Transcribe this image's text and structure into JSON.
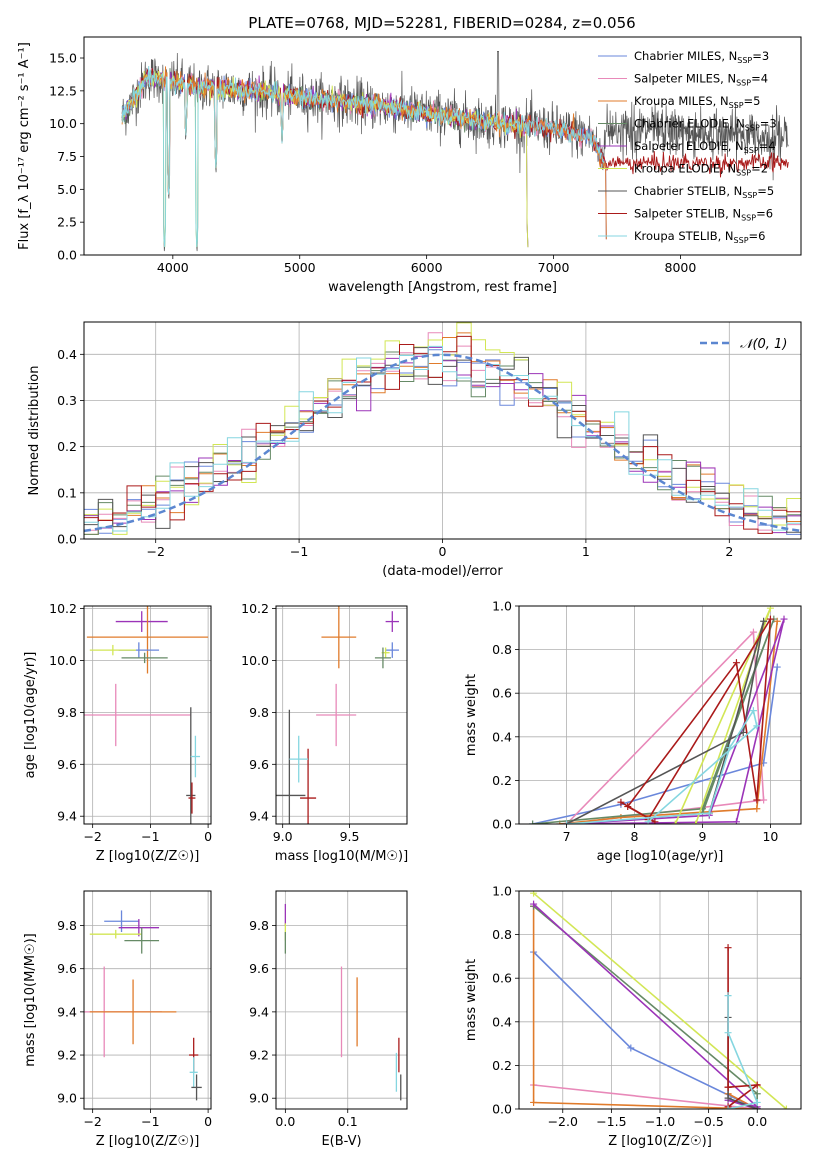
{
  "page": {
    "title": "PLATE=0768, MJD=52281, FIBERID=0284, z=0.056"
  },
  "colors": {
    "Chabrier MILES": "#6a87db",
    "Salpeter MILES": "#e889b9",
    "Kroupa MILES": "#e07b2b",
    "Chabrier ELODIE": "#668a66",
    "Salpeter ELODIE": "#9b34b8",
    "Kroupa ELODIE": "#d2e655",
    "Chabrier STELIB": "#555555",
    "Salpeter STELIB": "#aa1a1a",
    "Kroupa STELIB": "#85d6e0",
    "grid": "#b0b0b0",
    "gauss": "#5b86d0"
  },
  "legend": {
    "models": [
      {
        "name": "Chabrier MILES",
        "nssp": "3"
      },
      {
        "name": "Salpeter MILES",
        "nssp": "4"
      },
      {
        "name": "Kroupa MILES",
        "nssp": "5"
      },
      {
        "name": "Chabrier ELODIE",
        "nssp": "3"
      },
      {
        "name": "Salpeter ELODIE",
        "nssp": "4"
      },
      {
        "name": "Kroupa ELODIE",
        "nssp": "2"
      },
      {
        "name": "Chabrier STELIB",
        "nssp": "5"
      },
      {
        "name": "Salpeter STELIB",
        "nssp": "6"
      },
      {
        "name": "Kroupa STELIB",
        "nssp": "6"
      }
    ],
    "gauss_label": "𝒩(0, 1)"
  },
  "chart_data": [
    {
      "id": "spectrum",
      "type": "line",
      "title": "PLATE=0768, MJD=52281, FIBERID=0284, z=0.056",
      "xlabel": "wavelength [Angstrom, rest frame]",
      "ylabel": "Flux [f_λ 10⁻¹⁷ erg cm⁻² s⁻¹ A⁻¹]",
      "xlim": [
        3300,
        8950
      ],
      "ylim": [
        0,
        16.6
      ],
      "xticks": [
        4000,
        5000,
        6000,
        7000,
        8000
      ],
      "yticks": [
        0.0,
        2.5,
        5.0,
        7.5,
        10.0,
        12.5,
        15.0
      ],
      "xtick_labels": [
        "4000",
        "5000",
        "6000",
        "7000",
        "8000"
      ],
      "ytick_labels": [
        "0.0",
        "2.5",
        "5.0",
        "7.5",
        "10.0",
        "12.5",
        "15.0"
      ],
      "grid": false,
      "legend_position": "top-right",
      "continuum": {
        "x": [
          3600,
          3700,
          3800,
          3900,
          4000,
          4200,
          4500,
          4800,
          5000,
          5500,
          6000,
          6500,
          7000,
          7300,
          7400
        ],
        "y": [
          10.5,
          12.0,
          13.6,
          13.4,
          13.2,
          12.8,
          12.6,
          12.3,
          12.0,
          11.5,
          10.8,
          10.1,
          9.6,
          9.0,
          7.0
        ]
      },
      "absorption_features": [
        {
          "x": 3934,
          "depth_to": 0.0
        },
        {
          "x": 3968,
          "depth_to": 4.0
        },
        {
          "x": 4102,
          "depth_to": 8.5
        },
        {
          "x": 4190,
          "depth_to": 0.0
        },
        {
          "x": 4340,
          "depth_to": 6.0
        },
        {
          "x": 4861,
          "depth_to": 8.2
        },
        {
          "x": 6800,
          "depth_to": 0.0
        },
        {
          "x": 7420,
          "depth_to": 0.0
        }
      ],
      "emission_features": [
        {
          "x": 6563,
          "peak_to": 15.5
        }
      ]
    },
    {
      "id": "residuals",
      "type": "step",
      "xlabel": "(data-model)/error",
      "ylabel": "Normed distribution",
      "xlim": [
        -2.5,
        2.5
      ],
      "ylim": [
        0,
        0.47
      ],
      "xticks": [
        -2,
        -1,
        0,
        1,
        2
      ],
      "xtick_labels": [
        "−2",
        "−1",
        "0",
        "1",
        "2"
      ],
      "yticks": [
        0.0,
        0.1,
        0.2,
        0.3,
        0.4
      ],
      "ytick_labels": [
        "0.0",
        "0.1",
        "0.2",
        "0.3",
        "0.4"
      ],
      "grid": true,
      "legend_position": "top-right",
      "bins": 50,
      "gauss": {
        "mean": 0,
        "sigma": 1
      }
    },
    {
      "id": "age_vs_Z",
      "type": "errorbar",
      "xlabel": "Z [log10(Z/Z☉)]",
      "ylabel": "age  [log10(age/yr)]",
      "xlim": [
        -2.15,
        0.05
      ],
      "ylim": [
        9.37,
        10.21
      ],
      "xticks": [
        -2,
        -1,
        0
      ],
      "xtick_labels": [
        "−2",
        "−1",
        "0"
      ],
      "yticks": [
        9.4,
        9.6,
        9.8,
        10.0,
        10.2
      ],
      "ytick_labels": [
        "9.4",
        "9.6",
        "9.8",
        "10.0",
        "10.2"
      ],
      "points": [
        {
          "model": "Salpeter ELODIE",
          "x": -1.15,
          "xerr": 0.45,
          "y": 10.15,
          "yerr": 0.04
        },
        {
          "model": "Kroupa MILES",
          "x": -1.05,
          "xerr": 1.05,
          "y": 10.09,
          "yerr": 0.14
        },
        {
          "model": "Chabrier MILES",
          "x": -1.2,
          "xerr": 0.35,
          "y": 10.04,
          "yerr": 0.03
        },
        {
          "model": "Kroupa ELODIE",
          "x": -1.65,
          "xerr": 0.4,
          "y": 10.04,
          "yerr": 0.02
        },
        {
          "model": "Chabrier ELODIE",
          "x": -1.1,
          "xerr": 0.4,
          "y": 10.01,
          "yerr": 0.02
        },
        {
          "model": "Salpeter MILES",
          "x": -1.6,
          "xerr": 1.3,
          "y": 9.79,
          "yerr": 0.12
        },
        {
          "model": "Chabrier STELIB",
          "x": -0.3,
          "xerr": 0.08,
          "y": 9.48,
          "yerr": 0.34
        },
        {
          "model": "Salpeter STELIB",
          "x": -0.28,
          "xerr": 0.06,
          "y": 9.47,
          "yerr": 0.06
        },
        {
          "model": "Kroupa STELIB",
          "x": -0.22,
          "xerr": 0.08,
          "y": 9.63,
          "yerr": 0.08
        }
      ]
    },
    {
      "id": "age_vs_mass",
      "type": "errorbar",
      "xlabel": "mass [log10(M/M☉)]",
      "ylabel": "",
      "xlim": [
        8.95,
        9.93
      ],
      "ylim": [
        9.37,
        10.21
      ],
      "xticks": [
        9.0,
        9.5
      ],
      "xtick_labels": [
        "9.0",
        "9.5"
      ],
      "yticks": [
        9.4,
        9.6,
        9.8,
        10.0,
        10.2
      ],
      "ytick_labels": [
        "9.4",
        "9.6",
        "9.8",
        "10.0",
        "10.2"
      ],
      "points": [
        {
          "model": "Salpeter ELODIE",
          "x": 9.82,
          "xerr": 0.05,
          "y": 10.15,
          "yerr": 0.04
        },
        {
          "model": "Kroupa MILES",
          "x": 9.42,
          "xerr": 0.13,
          "y": 10.09,
          "yerr": 0.12
        },
        {
          "model": "Chabrier MILES",
          "x": 9.82,
          "xerr": 0.05,
          "y": 10.04,
          "yerr": 0.03
        },
        {
          "model": "Kroupa ELODIE",
          "x": 9.77,
          "xerr": 0.03,
          "y": 10.03,
          "yerr": 0.02
        },
        {
          "model": "Chabrier ELODIE",
          "x": 9.75,
          "xerr": 0.06,
          "y": 10.01,
          "yerr": 0.04
        },
        {
          "model": "Salpeter MILES",
          "x": 9.4,
          "xerr": 0.15,
          "y": 9.79,
          "yerr": 0.12
        },
        {
          "model": "Chabrier STELIB",
          "x": 9.05,
          "xerr": 0.12,
          "y": 9.48,
          "yerr": 0.33
        },
        {
          "model": "Salpeter STELIB",
          "x": 9.19,
          "xerr": 0.06,
          "y": 9.47,
          "yerr": 0.19
        },
        {
          "model": "Kroupa STELIB",
          "x": 9.12,
          "xerr": 0.07,
          "y": 9.62,
          "yerr": 0.09
        }
      ]
    },
    {
      "id": "weight_vs_age",
      "type": "line",
      "xlabel": "age  [log10(age/yr)]",
      "ylabel": "mass weight",
      "xlim": [
        6.3,
        10.45
      ],
      "ylim": [
        0,
        1
      ],
      "xticks": [
        7,
        8,
        9,
        10
      ],
      "xtick_labels": [
        "7",
        "8",
        "9",
        "10"
      ],
      "yticks": [
        0.0,
        0.2,
        0.4,
        0.6,
        0.8,
        1.0
      ],
      "ytick_labels": [
        "0.0",
        "0.2",
        "0.4",
        "0.6",
        "0.8",
        "1.0"
      ],
      "grid": true,
      "series": [
        {
          "model": "Chabrier MILES",
          "x": [
            6.5,
            7.8,
            9.9,
            10.1
          ],
          "y": [
            0.0,
            0.09,
            0.28,
            0.72
          ]
        },
        {
          "model": "Salpeter MILES",
          "x": [
            7.0,
            9.75,
            9.9,
            7.0
          ],
          "y": [
            0.0,
            0.88,
            0.11,
            0.0
          ]
        },
        {
          "model": "Kroupa MILES",
          "x": [
            6.9,
            7.8,
            9.8,
            10.1
          ],
          "y": [
            0.0,
            0.03,
            0.07,
            0.93
          ]
        },
        {
          "model": "Chabrier ELODIE",
          "x": [
            6.5,
            9.0,
            10.05,
            9.0
          ],
          "y": [
            0.0,
            0.07,
            0.94,
            0.05
          ]
        },
        {
          "model": "Salpeter ELODIE",
          "x": [
            7.0,
            9.1,
            10.2,
            9.5,
            7.0
          ],
          "y": [
            0.0,
            0.04,
            0.94,
            0.01,
            0.0
          ]
        },
        {
          "model": "Kroupa ELODIE",
          "x": [
            8.6,
            10.0,
            8.9
          ],
          "y": [
            0.0,
            0.99,
            0.0
          ]
        },
        {
          "model": "Chabrier STELIB",
          "x": [
            7.0,
            9.6,
            9.9,
            9.1
          ],
          "y": [
            0.0,
            0.42,
            0.93,
            0.05
          ]
        },
        {
          "model": "Salpeter STELIB",
          "x": [
            7.8,
            8.3,
            7.9,
            9.5,
            9.8,
            10.0,
            8.2
          ],
          "y": [
            0.1,
            0.01,
            0.08,
            0.74,
            0.11,
            0.94,
            0.02
          ]
        },
        {
          "model": "Kroupa STELIB",
          "x": [
            7.0,
            9.1,
            9.4,
            9.75,
            9.8,
            8.2
          ],
          "y": [
            0.0,
            0.05,
            0.35,
            0.52,
            0.45,
            0.01
          ]
        }
      ]
    },
    {
      "id": "mass_vs_Z",
      "type": "errorbar",
      "xlabel": "Z [log10(Z/Z☉)]",
      "ylabel": "mass [log10(M/M☉)]",
      "xlim": [
        -2.15,
        0.05
      ],
      "ylim": [
        8.95,
        9.96
      ],
      "xticks": [
        -2,
        -1,
        0
      ],
      "xtick_labels": [
        "−2",
        "−1",
        "0"
      ],
      "yticks": [
        9.0,
        9.2,
        9.4,
        9.6,
        9.8
      ],
      "ytick_labels": [
        "9.0",
        "9.2",
        "9.4",
        "9.6",
        "9.8"
      ],
      "points": [
        {
          "model": "Chabrier MILES",
          "x": -1.5,
          "xerr": 0.3,
          "y": 9.82,
          "yerr": 0.05
        },
        {
          "model": "Salpeter ELODIE",
          "x": -1.2,
          "xerr": 0.35,
          "y": 9.79,
          "yerr": 0.04
        },
        {
          "model": "Kroupa ELODIE",
          "x": -1.6,
          "xerr": 0.45,
          "y": 9.76,
          "yerr": 0.02
        },
        {
          "model": "Chabrier ELODIE",
          "x": -1.15,
          "xerr": 0.3,
          "y": 9.73,
          "yerr": 0.06
        },
        {
          "model": "Salpeter MILES",
          "x": -1.8,
          "xerr": 1.0,
          "y": 9.4,
          "yerr": 0.21
        },
        {
          "model": "Kroupa MILES",
          "x": -1.3,
          "xerr": 0.75,
          "y": 9.4,
          "yerr": 0.15
        },
        {
          "model": "Salpeter STELIB",
          "x": -0.25,
          "xerr": 0.08,
          "y": 9.2,
          "yerr": 0.08
        },
        {
          "model": "Kroupa STELIB",
          "x": -0.25,
          "xerr": 0.07,
          "y": 9.12,
          "yerr": 0.07
        },
        {
          "model": "Chabrier STELIB",
          "x": -0.2,
          "xerr": 0.09,
          "y": 9.05,
          "yerr": 0.06
        }
      ]
    },
    {
      "id": "mass_vs_ebv",
      "type": "errorbar",
      "xlabel": "E(B-V)",
      "ylabel": "",
      "xlim": [
        -0.015,
        0.195
      ],
      "ylim": [
        8.95,
        9.96
      ],
      "xticks": [
        0.0,
        0.1
      ],
      "xtick_labels": [
        "0.0",
        "0.1"
      ],
      "yticks": [
        9.0,
        9.2,
        9.4,
        9.6,
        9.8
      ],
      "ytick_labels": [
        "9.0",
        "9.2",
        "9.4",
        "9.6",
        "9.8"
      ],
      "points": [
        {
          "model": "Salpeter ELODIE",
          "x": 0.0,
          "xerr": 0.0,
          "y": 9.85,
          "yerr": 0.05
        },
        {
          "model": "Kroupa ELODIE",
          "x": 0.0,
          "xerr": 0.0,
          "y": 9.77,
          "yerr": 0.04
        },
        {
          "model": "Chabrier ELODIE",
          "x": 0.0,
          "xerr": 0.0,
          "y": 9.72,
          "yerr": 0.05
        },
        {
          "model": "Salpeter MILES",
          "x": 0.09,
          "xerr": 0.0,
          "y": 9.4,
          "yerr": 0.21
        },
        {
          "model": "Kroupa MILES",
          "x": 0.115,
          "xerr": 0.0,
          "y": 9.4,
          "yerr": 0.16
        },
        {
          "model": "Salpeter STELIB",
          "x": 0.182,
          "xerr": 0.0,
          "y": 9.2,
          "yerr": 0.08
        },
        {
          "model": "Kroupa STELIB",
          "x": 0.178,
          "xerr": 0.0,
          "y": 9.12,
          "yerr": 0.09
        },
        {
          "model": "Chabrier STELIB",
          "x": 0.185,
          "xerr": 0.0,
          "y": 9.05,
          "yerr": 0.06
        }
      ]
    },
    {
      "id": "weight_vs_Z",
      "type": "line",
      "xlabel": "Z [log10(Z/Z☉)]",
      "ylabel": "mass weight",
      "xlim": [
        -2.45,
        0.45
      ],
      "ylim": [
        0,
        1
      ],
      "xticks": [
        -2.0,
        -1.5,
        -1.0,
        -0.5,
        0.0
      ],
      "xtick_labels": [
        "−2.0",
        "−1.5",
        "−1.0",
        "−0.5",
        "0.0"
      ],
      "yticks": [
        0.0,
        0.2,
        0.4,
        0.6,
        0.8,
        1.0
      ],
      "ytick_labels": [
        "0.0",
        "0.2",
        "0.4",
        "0.6",
        "0.8",
        "1.0"
      ],
      "grid": true,
      "series": [
        {
          "model": "Chabrier MILES",
          "x": [
            -2.3,
            -1.3,
            0.0,
            -0.3
          ],
          "y": [
            0.72,
            0.28,
            0.0,
            0.0
          ]
        },
        {
          "model": "Salpeter MILES",
          "x": [
            -2.3,
            0.0,
            -0.3
          ],
          "y": [
            0.11,
            0.0,
            0.0
          ]
        },
        {
          "model": "Kroupa MILES",
          "x": [
            -2.3,
            -2.3,
            0.0,
            -0.3
          ],
          "y": [
            0.93,
            0.03,
            0.0,
            0.07
          ]
        },
        {
          "model": "Chabrier ELODIE",
          "x": [
            -2.3,
            0.0,
            0.0
          ],
          "y": [
            0.93,
            0.07,
            0.0
          ]
        },
        {
          "model": "Salpeter ELODIE",
          "x": [
            -2.3,
            0.0,
            -0.3,
            0.0
          ],
          "y": [
            0.94,
            0.01,
            0.04,
            0.0
          ]
        },
        {
          "model": "Kroupa ELODIE",
          "x": [
            -2.3,
            0.3
          ],
          "y": [
            0.99,
            0.0
          ]
        },
        {
          "model": "Chabrier STELIB",
          "x": [
            -0.3,
            -0.3,
            0.0
          ],
          "y": [
            0.42,
            0.05,
            0.0
          ]
        },
        {
          "model": "Salpeter STELIB",
          "x": [
            -0.3,
            -0.3,
            -0.3,
            0.0,
            -0.3
          ],
          "y": [
            0.74,
            0.1,
            0.1,
            0.11,
            0.01
          ]
        },
        {
          "model": "Kroupa STELIB",
          "x": [
            -0.3,
            -0.3,
            0.0,
            -0.3
          ],
          "y": [
            0.52,
            0.35,
            0.03,
            0.0
          ]
        }
      ]
    }
  ]
}
